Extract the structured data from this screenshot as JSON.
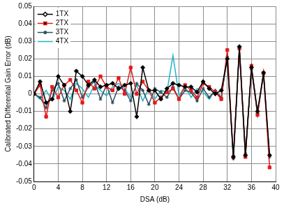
{
  "chart_data": {
    "type": "line",
    "x_label": "DSA (dB)",
    "y_label": "Calibrated Differential Gain Error (dB)",
    "x": [
      0,
      1,
      2,
      3,
      4,
      5,
      6,
      7,
      8,
      9,
      10,
      11,
      12,
      13,
      14,
      15,
      16,
      17,
      18,
      19,
      20,
      21,
      22,
      23,
      24,
      25,
      26,
      27,
      28,
      29,
      30,
      31,
      32,
      33,
      34,
      35,
      36,
      37,
      38,
      39
    ],
    "series": [
      {
        "name": "1TX",
        "color": "#000000",
        "marker": "diamond",
        "values": [
          0,
          0.007,
          -0.005,
          -0.003,
          0.01,
          0.005,
          -0.01,
          0.013,
          0.01,
          0.005,
          0.008,
          0.004,
          0.005,
          0.006,
          0.003,
          0.005,
          0.006,
          -0.013,
          0.015,
          0.002,
          0.002,
          -0.003,
          0.003,
          0.006,
          0.005,
          0.004,
          0.004,
          0.001,
          0.007,
          0.003,
          0,
          0.002,
          0.02,
          -0.036,
          0.027,
          -0.035,
          0.015,
          -0.01,
          0.012,
          -0.035
        ]
      },
      {
        "name": "2TX",
        "color": "#e41a1c",
        "marker": "square",
        "values": [
          0,
          0.005,
          -0.013,
          0.004,
          -0.002,
          0.005,
          0.008,
          0.002,
          -0.005,
          0.007,
          0.003,
          0.01,
          0.004,
          0.002,
          0.009,
          0,
          0.015,
          0,
          0.007,
          0.002,
          -0.005,
          -0.002,
          0.001,
          0.003,
          -0.003,
          0.005,
          0.002,
          -0.002,
          0.006,
          0.004,
          0.001,
          -0.003,
          0.025,
          -0.036,
          0.026,
          -0.036,
          0.016,
          -0.012,
          0.012,
          -0.042
        ]
      },
      {
        "name": "3TX",
        "color": "#2f4f5f",
        "marker": "star",
        "values": [
          0,
          -0.002,
          -0.008,
          0.002,
          0.006,
          -0.004,
          0.003,
          0.008,
          -0.002,
          0.004,
          0.007,
          -0.003,
          0.005,
          -0.005,
          0.004,
          0.002,
          -0.004,
          0.006,
          0.002,
          -0.006,
          0.003,
          0.001,
          -0.002,
          0.004,
          -0.003,
          0.002,
          0.001,
          -0.004,
          0.003,
          -0.002,
          0.002,
          -0.002,
          0.021,
          -0.037,
          0.026,
          -0.034,
          0.014,
          -0.011,
          0.011,
          -0.036
        ]
      },
      {
        "name": "4TX",
        "color": "#1fb4c8",
        "marker": "none",
        "values": [
          0,
          -0.003,
          0.002,
          -0.004,
          0.004,
          0.002,
          -0.003,
          0.006,
          0.003,
          -0.002,
          0.005,
          0.002,
          -0.001,
          0.004,
          0.006,
          0.003,
          -0.002,
          0.005,
          -0.004,
          0.003,
          -0.003,
          0.002,
          0.001,
          0.022,
          -0.001,
          0.004,
          -0.002,
          0.003,
          0.001,
          -0.003,
          0.002,
          -0.003,
          0.023,
          -0.038,
          0.025,
          -0.036,
          0.015,
          -0.012,
          0.011,
          -0.037
        ]
      }
    ],
    "xlim": [
      0,
      40
    ],
    "xticks": [
      0,
      4,
      8,
      12,
      16,
      20,
      24,
      28,
      32,
      36,
      40
    ],
    "ylim": [
      -0.05,
      0.05
    ],
    "yticks": [
      -0.05,
      -0.04,
      -0.03,
      -0.02,
      -0.01,
      0,
      0.01,
      0.02,
      0.03,
      0.04,
      0.05
    ],
    "grid": true,
    "legend": "upper left"
  }
}
